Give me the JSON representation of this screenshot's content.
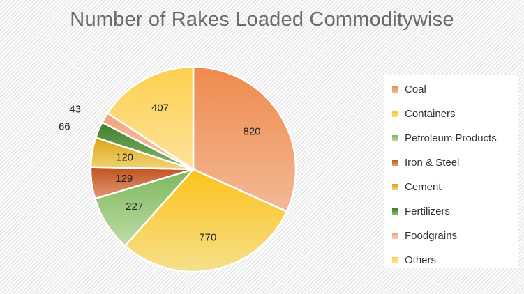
{
  "chart_data": {
    "type": "pie",
    "title": "Number of Rakes Loaded Commoditywise",
    "legend_position": "right",
    "slices": [
      {
        "name": "Coal",
        "value": 820,
        "color": "#ee8a4c",
        "color_light": "#f4b896"
      },
      {
        "name": "Containers",
        "value": 770,
        "color": "#fcc21a",
        "color_light": "#f6e08c"
      },
      {
        "name": "Petroleum Products",
        "value": 227,
        "color": "#7db75b",
        "color_light": "#bfdca7"
      },
      {
        "name": "Iron & Steel",
        "value": 129,
        "color": "#c0501e",
        "color_light": "#e29a74"
      },
      {
        "name": "Cement",
        "value": 120,
        "color": "#d9a413",
        "color_light": "#f2d477"
      },
      {
        "name": "Fertilizers",
        "value": 66,
        "color": "#3f7d2a",
        "color_light": "#86b96b"
      },
      {
        "name": "Foodgrains",
        "value": 43,
        "color": "#f2a27c",
        "color_light": "#f8c9b0"
      },
      {
        "name": "Others",
        "value": 407,
        "color": "#fcd04f",
        "color_light": "#fde39a"
      }
    ]
  }
}
